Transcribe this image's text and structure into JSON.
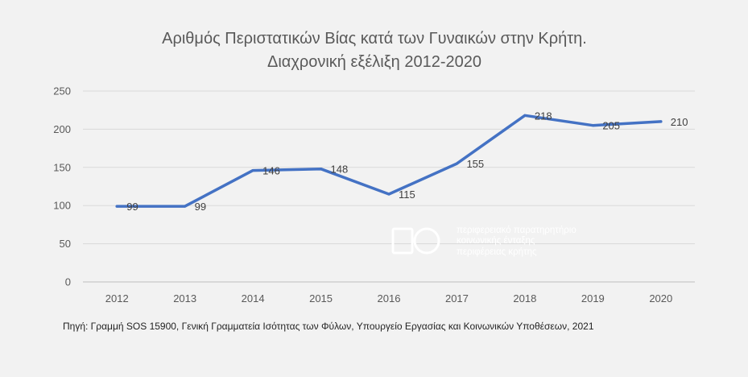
{
  "chart_data": {
    "type": "line",
    "title": [
      "Αριθμός Περιστατικών Βίας κατά των Γυναικών στην Κρήτη.",
      "Διαχρονική εξέλιξη 2012-2020"
    ],
    "x": [
      "2012",
      "2013",
      "2014",
      "2015",
      "2016",
      "2017",
      "2018",
      "2019",
      "2020"
    ],
    "series": [
      {
        "values": [
          99,
          99,
          146,
          148,
          115,
          155,
          218,
          205,
          210
        ],
        "color": "#4472c4"
      }
    ],
    "ylim": [
      0,
      250
    ],
    "yticks": [
      0,
      50,
      100,
      150,
      200,
      250
    ],
    "grid": true,
    "data_labels": true
  },
  "source_note": "Πηγή: Γραμμή SOS 15900, Γενική Γραμματεία Ισότητας των Φύλων, Υπουργείο Εργασίας και Κοινωνικών Υποθέσεων, 2021",
  "watermark": {
    "lines": [
      "περιφερειακό παρατηρητήριο",
      "κοινωνικής ένταξης",
      "περιφέρειας κρήτης"
    ],
    "color": "#ffffff"
  },
  "colors": {
    "background": "#f2f2f2",
    "grid": "#d9d9d9",
    "axis": "#bfbfbf",
    "line": "#4472c4"
  }
}
